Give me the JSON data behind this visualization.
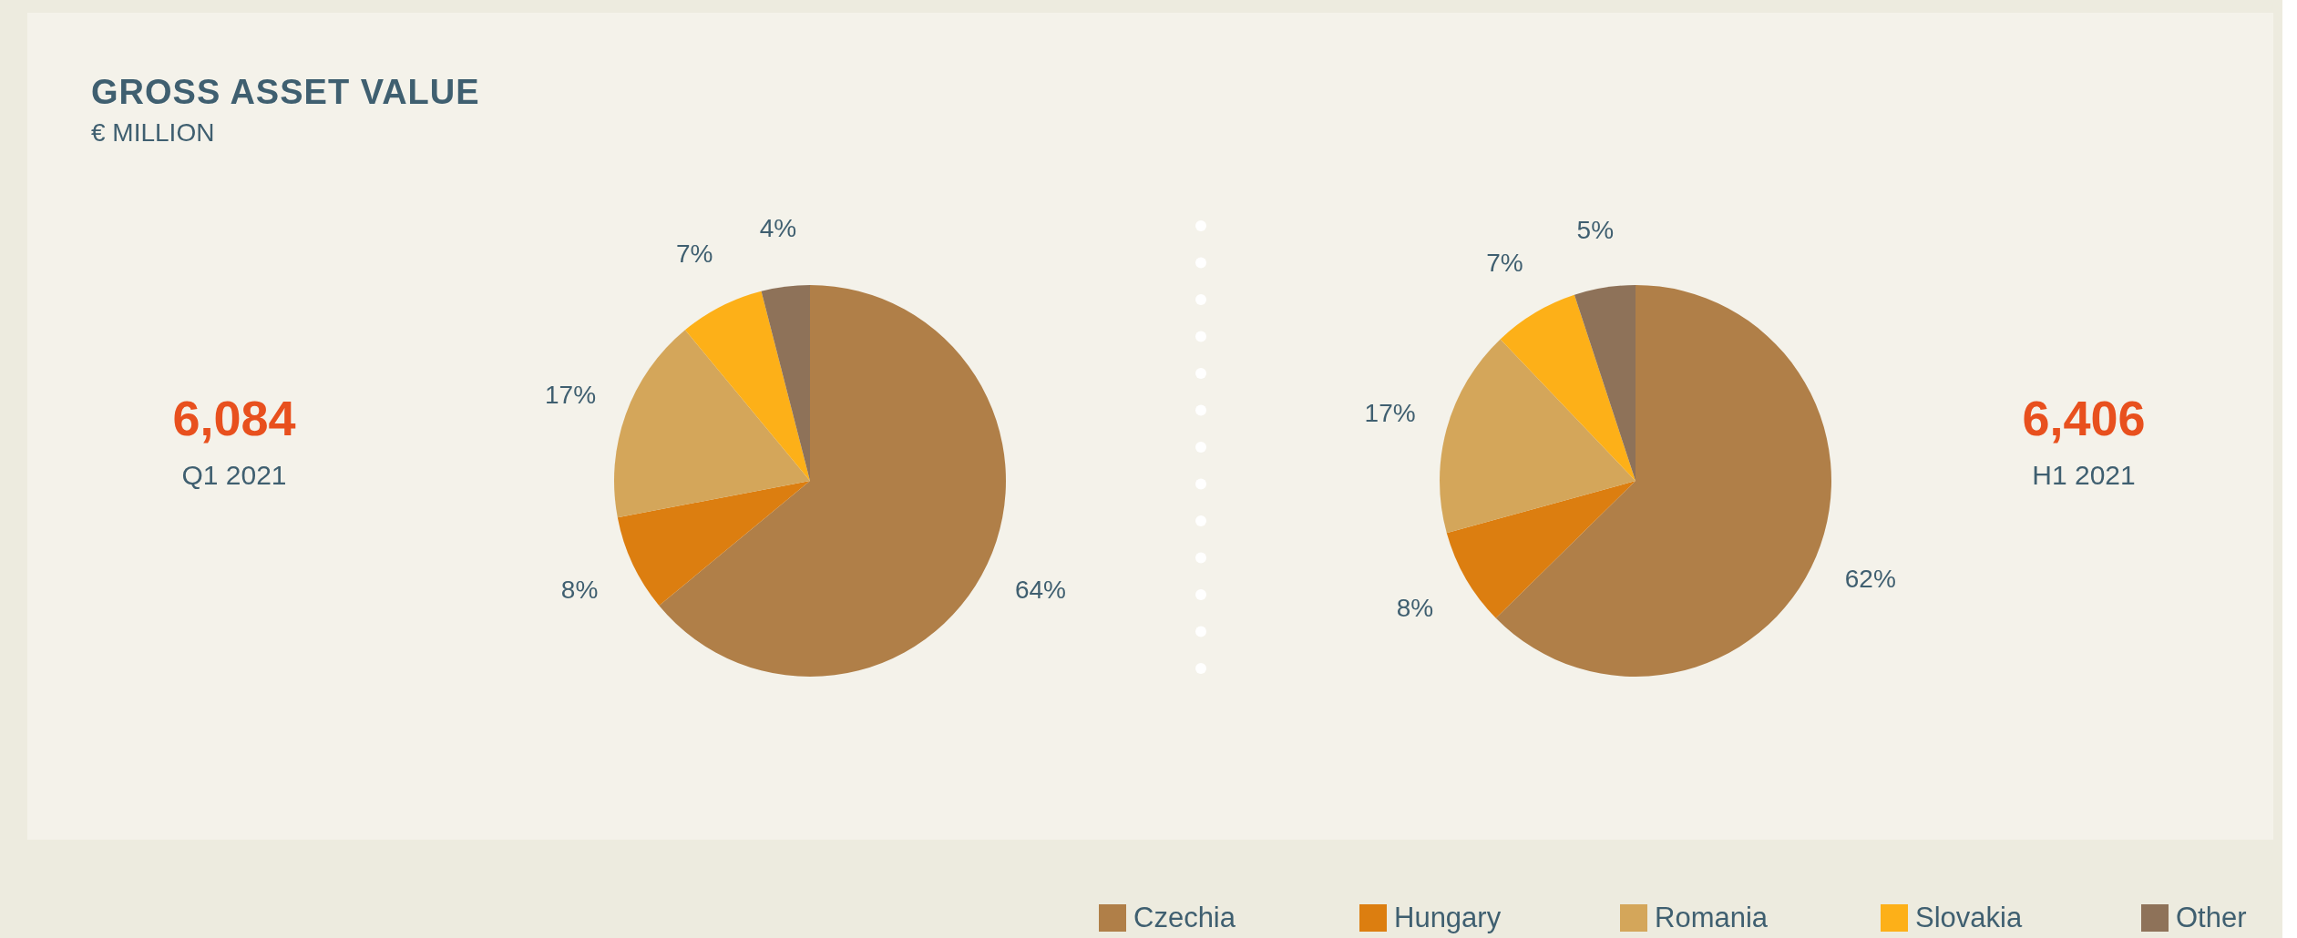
{
  "chart_data": [
    {
      "type": "pie",
      "title": "GROSS ASSET VALUE",
      "subtitle": "€ MILLION",
      "annotations": [
        "6,084",
        "Q1 2021"
      ],
      "categories": [
        "Czechia",
        "Hungary",
        "Romania",
        "Slovakia",
        "Other"
      ],
      "values": [
        64,
        8,
        17,
        7,
        4
      ],
      "value_labels": [
        "64%",
        "8%",
        "17%",
        "7%",
        "4%"
      ],
      "colors": [
        "#b07f48",
        "#dc7e10",
        "#d4a65a",
        "#fdb018",
        "#8e7259"
      ],
      "legend": "bottom"
    },
    {
      "type": "pie",
      "annotations": [
        "6,406",
        "H1 2021"
      ],
      "values": [
        62,
        8,
        17,
        7,
        5
      ],
      "value_labels": [
        "62%",
        "8%",
        "17%",
        "7%",
        "5%"
      ],
      "colors": [
        "#b07f48",
        "#dc7e10",
        "#d4a65a",
        "#fdb018",
        "#8e7259"
      ]
    }
  ]
}
